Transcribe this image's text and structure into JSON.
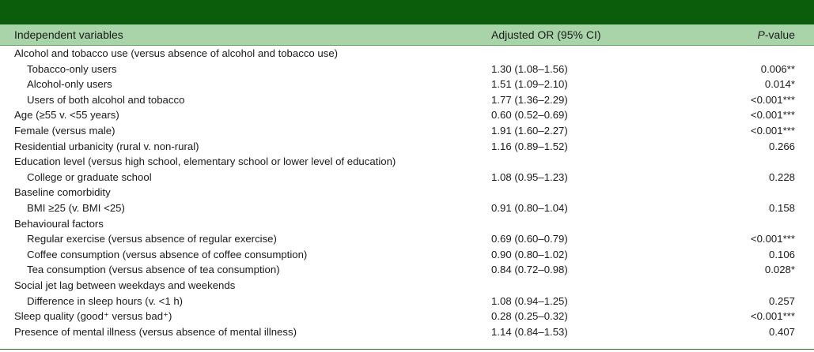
{
  "table": {
    "header": {
      "variables": "Independent variables",
      "or": "Adjusted OR (95% CI)",
      "p": "P-value"
    },
    "rows": [
      {
        "variable": "Alcohol and tobacco use (versus absence of alcohol and tobacco use)",
        "indent": false,
        "or": "",
        "p": ""
      },
      {
        "variable": "Tobacco-only users",
        "indent": true,
        "or": "1.30 (1.08–1.56)",
        "p": "0.006**"
      },
      {
        "variable": "Alcohol-only users",
        "indent": true,
        "or": "1.51 (1.09–2.10)",
        "p": "0.014*"
      },
      {
        "variable": "Users of both alcohol and tobacco",
        "indent": true,
        "or": "1.77 (1.36–2.29)",
        "p": "<0.001***"
      },
      {
        "variable": "Age (≥55 v. <55 years)",
        "indent": false,
        "or": "0.60 (0.52–0.69)",
        "p": "<0.001***"
      },
      {
        "variable": "Female (versus male)",
        "indent": false,
        "or": "1.91 (1.60–2.27)",
        "p": "<0.001***"
      },
      {
        "variable": "Residential urbanicity (rural v. non-rural)",
        "indent": false,
        "or": "1.16 (0.89–1.52)",
        "p": "0.266"
      },
      {
        "variable": "Education level (versus high school, elementary school or lower level of education)",
        "indent": false,
        "or": "",
        "p": ""
      },
      {
        "variable": "College or graduate school",
        "indent": true,
        "or": "1.08 (0.95–1.23)",
        "p": "0.228"
      },
      {
        "variable": "Baseline comorbidity",
        "indent": false,
        "or": "",
        "p": ""
      },
      {
        "variable": "BMI ≥25 (v. BMI <25)",
        "indent": true,
        "or": "0.91 (0.80–1.04)",
        "p": "0.158"
      },
      {
        "variable": "Behavioural factors",
        "indent": false,
        "or": "",
        "p": ""
      },
      {
        "variable": "Regular exercise (versus absence of regular exercise)",
        "indent": true,
        "or": "0.69 (0.60–0.79)",
        "p": "<0.001***"
      },
      {
        "variable": "Coffee consumption (versus absence of coffee consumption)",
        "indent": true,
        "or": "0.90 (0.80–1.02)",
        "p": "0.106"
      },
      {
        "variable": "Tea consumption (versus absence of tea consumption)",
        "indent": true,
        "or": "0.84 (0.72–0.98)",
        "p": "0.028*"
      },
      {
        "variable": "Social jet lag between weekdays and weekends",
        "indent": false,
        "or": "",
        "p": ""
      },
      {
        "variable": "Difference in sleep hours (v. <1 h)",
        "indent": true,
        "or": "1.08 (0.94–1.25)",
        "p": "0.257"
      },
      {
        "variable": "Sleep quality (good⁺ versus bad⁺)",
        "indent": false,
        "or": "0.28 (0.25–0.32)",
        "p": "<0.001***"
      },
      {
        "variable": "Presence of mental illness (versus absence of mental illness)",
        "indent": false,
        "or": "1.14 (0.84–1.53)",
        "p": "0.407"
      }
    ]
  }
}
